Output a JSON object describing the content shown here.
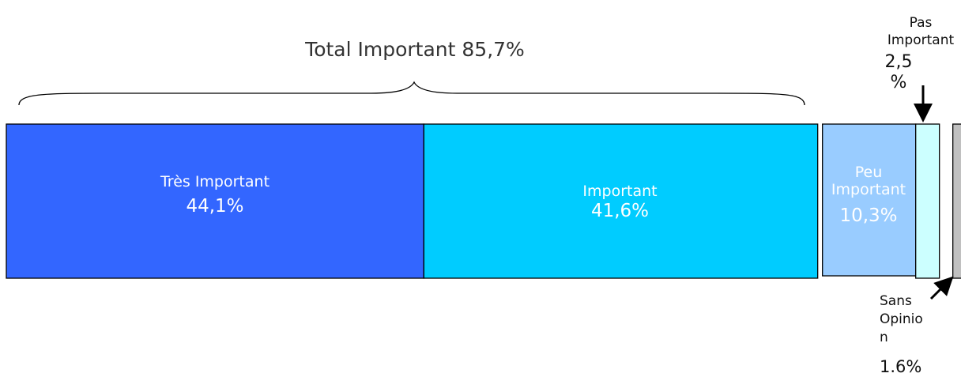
{
  "chart_data": {
    "type": "bar",
    "orientation": "horizontal-stacked",
    "title": "",
    "categories": [
      "Très Important",
      "Important",
      "Peu Important",
      "Pas Important",
      "Sans Opinion"
    ],
    "values": [
      44.1,
      41.6,
      10.3,
      2.5,
      1.6
    ],
    "value_labels": [
      "44,1%",
      "41,6%",
      "10,3%",
      "2,5 %",
      "1.6%"
    ],
    "colors": [
      "#3366ff",
      "#00ccff",
      "#99ccff",
      "#ccffff",
      "#c0c0c0"
    ],
    "bracket": {
      "label": "Total Important 85,7%",
      "value": 85.7,
      "spans": [
        "Très Important",
        "Important"
      ]
    }
  },
  "labels": {
    "tres_name": "Très Important",
    "tres_value": "44,1%",
    "important_name": "Important",
    "important_value": "41,6%",
    "peu_name_1": "Peu",
    "peu_name_2": "Important",
    "peu_value": "10,3%",
    "pas_name_1": "Pas",
    "pas_name_2": "Important",
    "pas_value_1": "2,5",
    "pas_value_2": "%",
    "sans_name_1": "Sans",
    "sans_name_2": "Opinio",
    "sans_name_3": "n",
    "sans_value": "1.6%",
    "total": "Total Important 85,7%"
  }
}
